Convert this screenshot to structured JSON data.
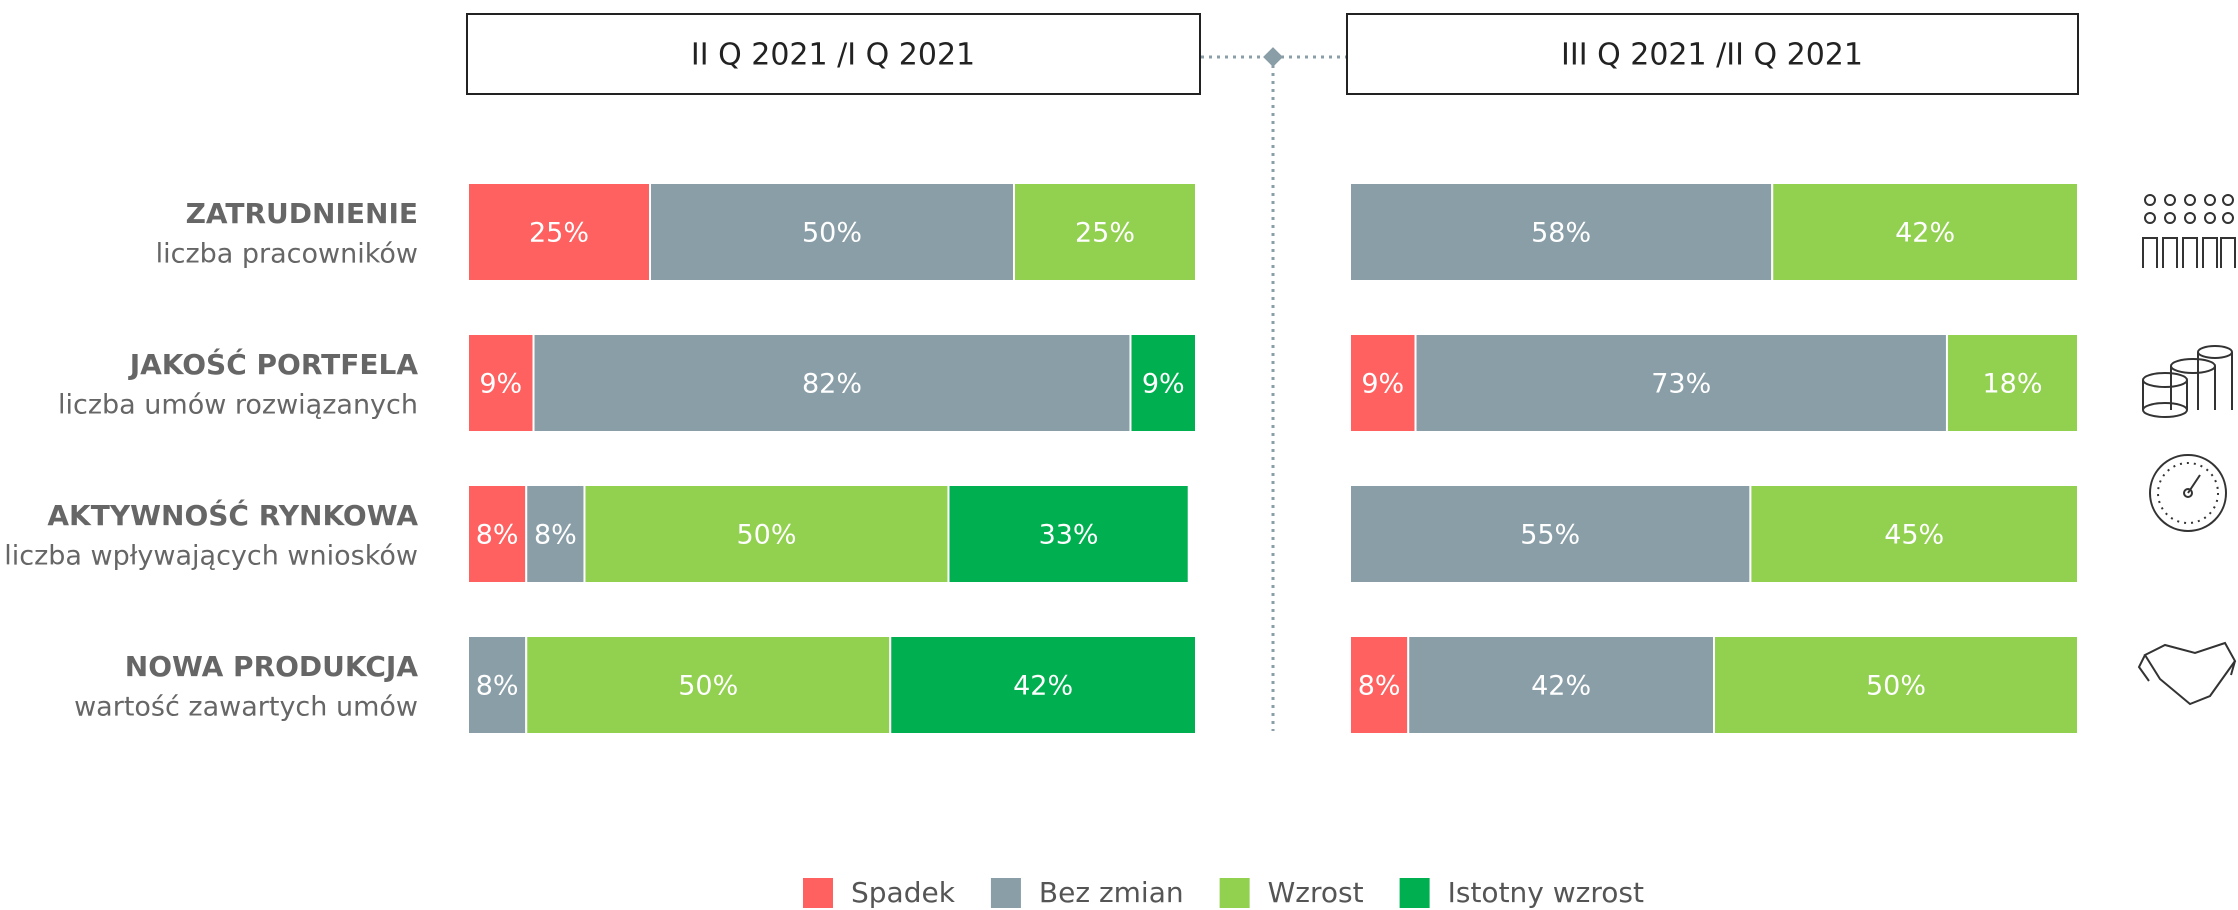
{
  "chart_data": [
    {
      "type": "stacked-bar-horizontal",
      "title": "II Q 2021 /I Q 2021",
      "categories": [
        "ZATRUDNIENIE",
        "JAKOŚĆ PORTFELA",
        "AKTYWNOŚĆ RYNKOWA",
        "NOWA PRODUKCJA"
      ],
      "category_subtitles": [
        "liczba pracowników",
        "liczba umów rozwiązanych",
        "liczba wpływających wniosków",
        "wartość zawartych umów"
      ],
      "xlim": [
        0,
        100
      ],
      "series": [
        {
          "name": "Spadek",
          "color": "#ff6161",
          "values": [
            25,
            9,
            8,
            null
          ],
          "value_labels": [
            "25%",
            "9%",
            "8%",
            null
          ]
        },
        {
          "name": "Bez zmian",
          "color": "#8a9ea8",
          "values": [
            50,
            82,
            8,
            8
          ],
          "value_labels": [
            "50%",
            "82%",
            "8%",
            "8%"
          ]
        },
        {
          "name": "Wzrost",
          "color": "#92d050",
          "values": [
            25,
            null,
            50,
            50
          ],
          "value_labels": [
            "25%",
            null,
            "50%",
            "50%"
          ]
        },
        {
          "name": "Istotny wzrost",
          "color": "#00b050",
          "values": [
            null,
            9,
            33,
            42
          ],
          "value_labels": [
            null,
            "9%",
            "33%",
            "42%"
          ]
        }
      ]
    },
    {
      "type": "stacked-bar-horizontal",
      "title": "III Q 2021 /II Q 2021",
      "xlim": [
        0,
        100
      ],
      "series": [
        {
          "color": "#ff6161",
          "values": [
            null,
            9,
            null,
            8
          ],
          "value_labels": [
            null,
            "9%",
            null,
            "8%"
          ]
        },
        {
          "color": "#8a9ea8",
          "values": [
            58,
            73,
            55,
            42
          ],
          "value_labels": [
            "58%",
            "73%",
            "55%",
            "42%"
          ]
        },
        {
          "color": "#92d050",
          "values": [
            42,
            18,
            45,
            50
          ],
          "value_labels": [
            "42%",
            "18%",
            "45%",
            "50%"
          ]
        },
        {
          "color": "#00b050",
          "values": [
            null,
            null,
            null,
            null
          ],
          "value_labels": [
            null,
            null,
            null,
            null
          ]
        }
      ]
    }
  ]
}
